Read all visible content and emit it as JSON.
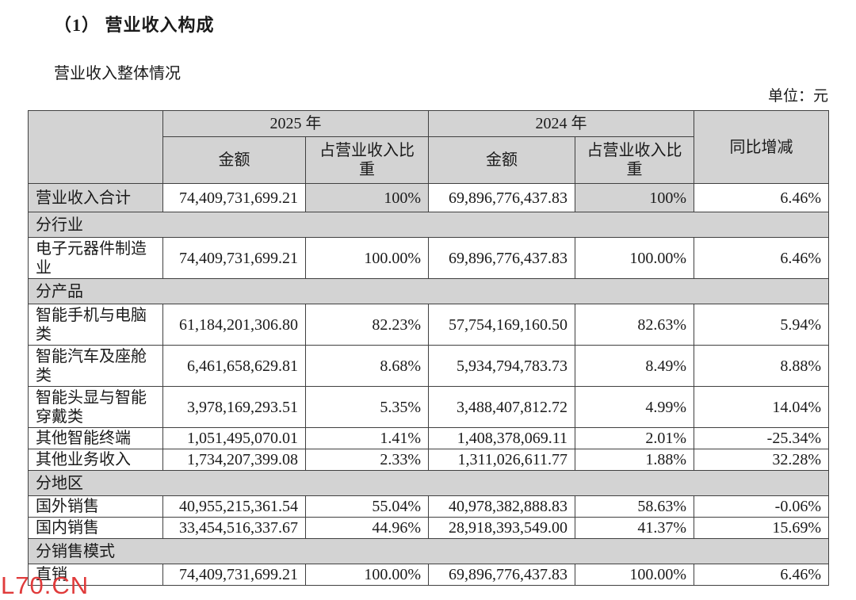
{
  "page": {
    "title": "（1） 营业收入构成",
    "subtitle": "营业收入整体情况",
    "unit_label": "单位：元",
    "watermark": "L70.CN"
  },
  "colors": {
    "shaded_cell_bg": "#d3d3d3",
    "border": "#404040",
    "watermark_red": "#e03b3b",
    "text": "#1a1a1a"
  },
  "table": {
    "header": {
      "year_2025": "2025 年",
      "year_2024": "2024 年",
      "amount": "金额",
      "ratio": "占营业收入比重",
      "yoy": "同比增减"
    },
    "rows": [
      {
        "type": "data",
        "style": "total",
        "shaded": true,
        "label": "营业收入合计",
        "cells": [
          "74,409,731,699.21",
          "100%",
          "69,896,776,437.83",
          "100%",
          "6.46%"
        ]
      },
      {
        "type": "section",
        "label": "分行业"
      },
      {
        "type": "data",
        "style": "2line",
        "shaded": false,
        "label": "电子元器件制造业",
        "cells": [
          "74,409,731,699.21",
          "100.00%",
          "69,896,776,437.83",
          "100.00%",
          "6.46%"
        ]
      },
      {
        "type": "section",
        "label": "分产品"
      },
      {
        "type": "data",
        "style": "2line",
        "shaded": false,
        "label": "智能手机与电脑类",
        "cells": [
          "61,184,201,306.80",
          "82.23%",
          "57,754,169,160.50",
          "82.63%",
          "5.94%"
        ]
      },
      {
        "type": "data",
        "style": "2line",
        "shaded": false,
        "label": "智能汽车及座舱类",
        "cells": [
          "6,461,658,629.81",
          "8.68%",
          "5,934,794,783.73",
          "8.49%",
          "8.88%"
        ]
      },
      {
        "type": "data",
        "style": "2line",
        "shaded": false,
        "label": "智能头显与智能穿戴类",
        "cells": [
          "3,978,169,293.51",
          "5.35%",
          "3,488,407,812.72",
          "4.99%",
          "14.04%"
        ]
      },
      {
        "type": "data",
        "style": "1line",
        "shaded": false,
        "label": "其他智能终端",
        "cells": [
          "1,051,495,070.01",
          "1.41%",
          "1,408,378,069.11",
          "2.01%",
          "-25.34%"
        ]
      },
      {
        "type": "data",
        "style": "1line",
        "shaded": false,
        "label": "其他业务收入",
        "cells": [
          "1,734,207,399.08",
          "2.33%",
          "1,311,026,611.77",
          "1.88%",
          "32.28%"
        ]
      },
      {
        "type": "section",
        "label": "分地区"
      },
      {
        "type": "data",
        "style": "1line",
        "shaded": false,
        "label": "国外销售",
        "cells": [
          "40,955,215,361.54",
          "55.04%",
          "40,978,382,888.83",
          "58.63%",
          "-0.06%"
        ]
      },
      {
        "type": "data",
        "style": "1line",
        "shaded": false,
        "label": "国内销售",
        "cells": [
          "33,454,516,337.67",
          "44.96%",
          "28,918,393,549.00",
          "41.37%",
          "15.69%"
        ]
      },
      {
        "type": "section",
        "label": "分销售模式"
      },
      {
        "type": "data",
        "style": "1line",
        "shaded": false,
        "label": "直销",
        "cells": [
          "74,409,731,699.21",
          "100.00%",
          "69,896,776,437.83",
          "100.00%",
          "6.46%"
        ]
      }
    ]
  }
}
